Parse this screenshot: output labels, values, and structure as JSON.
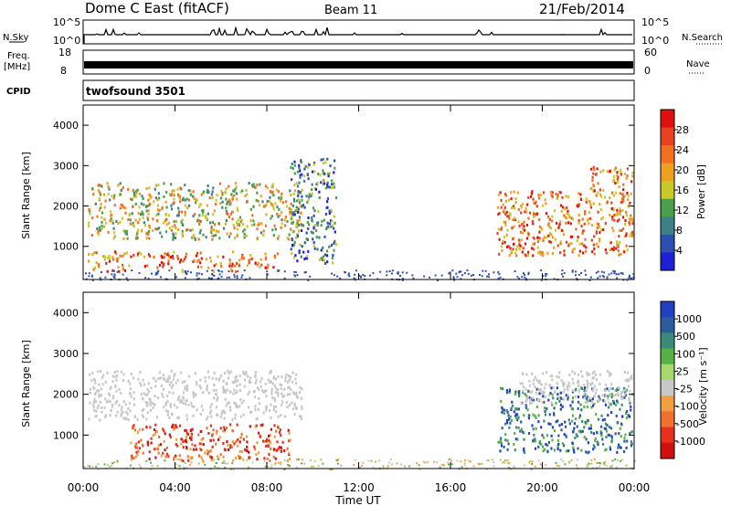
{
  "header": {
    "title": "Dome C East (fitACF)",
    "beam": "Beam 11",
    "date": "21/Feb/2014"
  },
  "panels": {
    "nsky": {
      "label": "N.Sky",
      "ticks": [
        "10^5",
        "10^0"
      ],
      "right_label": "N.Search",
      "right_ticks": [
        "10^5",
        "10^0"
      ]
    },
    "freq": {
      "label_line1": "Freq.",
      "label_line2": "[MHz]",
      "ticks": [
        "18",
        "8"
      ],
      "right_label": "Nave",
      "right_ticks": [
        "60",
        "0"
      ]
    },
    "cpid": {
      "label": "CPID",
      "value": "twofsound 3501"
    }
  },
  "colors": {
    "power_scale": [
      "#1f1fd6",
      "#2e4fb2",
      "#3f7f86",
      "#4aa04a",
      "#c8c826",
      "#f0a020",
      "#f07020",
      "#e84020",
      "#e01010"
    ],
    "velocity_scale": [
      "#2040c0",
      "#2e5c9a",
      "#3a8a7a",
      "#58b048",
      "#a6d86a",
      "#c8c8c8",
      "#f0a040",
      "#f07030",
      "#e83020",
      "#d01010"
    ],
    "ground_scatter": "#c8c8c8"
  },
  "chart_data": [
    {
      "type": "heatmap",
      "name": "power",
      "xlabel": "",
      "ylabel": "Slant Range [km]",
      "xlim": [
        0,
        24
      ],
      "ylim": [
        180,
        4500
      ],
      "y_ticks": [
        "1000",
        "2000",
        "3000",
        "4000"
      ],
      "colorbar": {
        "label": "Power [dB]",
        "range": [
          0,
          32
        ],
        "ticks": [
          "4",
          "8",
          "12",
          "16",
          "20",
          "24",
          "28"
        ]
      },
      "scatter_regions": [
        {
          "t_start": 0.2,
          "t_end": 9.5,
          "range_start": 1200,
          "range_end": 2600,
          "level": "mid"
        },
        {
          "t_start": 0.2,
          "t_end": 8.5,
          "range_start": 400,
          "range_end": 900,
          "level": "high"
        },
        {
          "t_start": 9.0,
          "t_end": 11.0,
          "range_start": 600,
          "range_end": 3200,
          "level": "low"
        },
        {
          "t_start": 18.0,
          "t_end": 23.9,
          "range_start": 800,
          "range_end": 2400,
          "level": "high"
        },
        {
          "t_start": 22.0,
          "t_end": 23.9,
          "range_start": 2400,
          "range_end": 3000,
          "level": "high"
        }
      ]
    },
    {
      "type": "heatmap",
      "name": "velocity",
      "xlabel": "Time UT",
      "ylabel": "Slant Range [km]",
      "xlim": [
        0,
        24
      ],
      "ylim": [
        180,
        4500
      ],
      "x_ticks": [
        "00:00",
        "04:00",
        "08:00",
        "12:00",
        "16:00",
        "20:00",
        "00:00"
      ],
      "y_ticks": [
        "1000",
        "2000",
        "3000",
        "4000"
      ],
      "colorbar": {
        "label": "Velocity [m s⁻¹]",
        "ticks": [
          "1000",
          "500",
          "100",
          "25",
          "-25",
          "-100",
          "-500",
          "-1000"
        ]
      },
      "scatter_regions": [
        {
          "t_start": 0.2,
          "t_end": 9.5,
          "range_start": 1400,
          "range_end": 2600,
          "level": "ground"
        },
        {
          "t_start": 2.0,
          "t_end": 9.0,
          "range_start": 400,
          "range_end": 1300,
          "level": "negative"
        },
        {
          "t_start": 18.0,
          "t_end": 23.9,
          "range_start": 600,
          "range_end": 2200,
          "level": "positive"
        },
        {
          "t_start": 19.0,
          "t_end": 23.9,
          "range_start": 1800,
          "range_end": 2600,
          "level": "ground"
        }
      ]
    }
  ]
}
